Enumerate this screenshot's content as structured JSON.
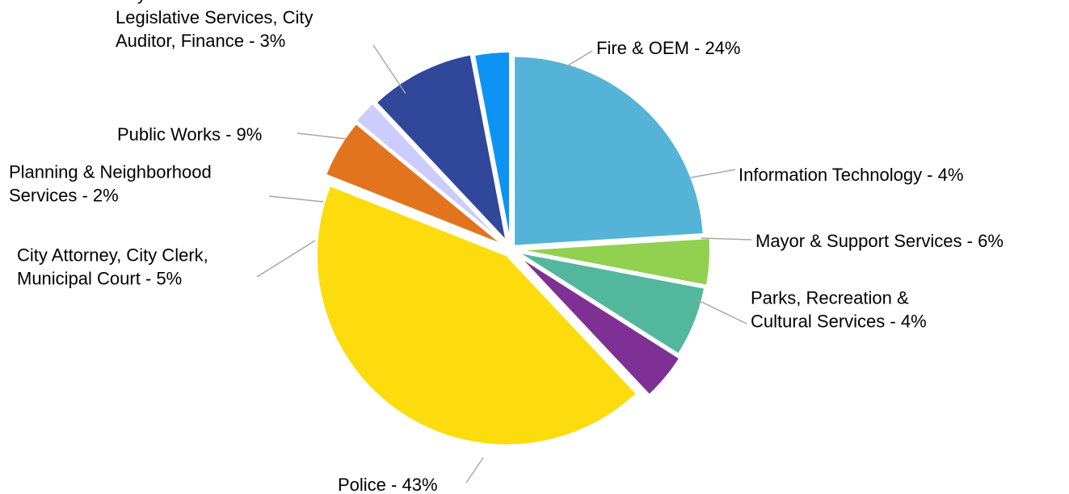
{
  "chart_data": {
    "type": "pie",
    "title": "",
    "slices": [
      {
        "label": [
          "Fire & OEM - 24%"
        ],
        "value": 24,
        "color": "#54b3d6"
      },
      {
        "label": [
          "Information Technology - 4%"
        ],
        "value": 4,
        "color": "#92d050"
      },
      {
        "label": [
          "Mayor & Support Services - 6%"
        ],
        "value": 6,
        "color": "#52b79d"
      },
      {
        "label": [
          "Parks, Recreation &",
          "Cultural Services - 4%"
        ],
        "value": 4,
        "color": "#7e3094"
      },
      {
        "label": [
          "Police - 43%"
        ],
        "value": 43,
        "color": "#fcdc0c"
      },
      {
        "label": [
          "City Attorney, City Clerk,",
          "Municipal Court - 5%"
        ],
        "value": 5,
        "color": "#e2741d"
      },
      {
        "label": [
          "Planning & Neighborhood",
          "Services - 2%"
        ],
        "value": 2,
        "color": "#ccccff"
      },
      {
        "label": [
          "Public Works - 9%"
        ],
        "value": 9,
        "color": "#30479a"
      },
      {
        "label": [
          "City Council and",
          "Legislative Services, City",
          "Auditor, Finance - 3%"
        ],
        "value": 3,
        "color": "#0d94f3"
      }
    ]
  }
}
